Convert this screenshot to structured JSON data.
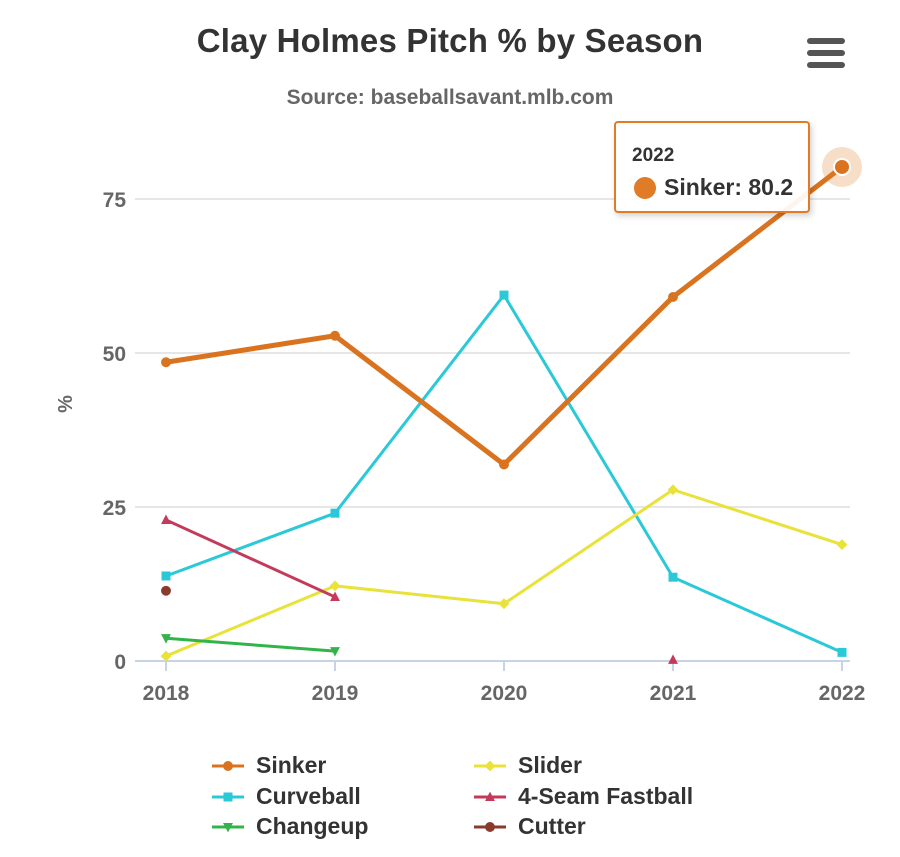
{
  "title": "Clay Holmes Pitch % by Season",
  "subtitle": "Source: baseballsavant.mlb.com",
  "menu": {
    "icon": "hamburger-menu-icon"
  },
  "tooltip": {
    "category": "2022",
    "series_name": "Sinker",
    "value_text": "80.2",
    "color": "#E07B28"
  },
  "chart_data": {
    "type": "line",
    "title": "Clay Holmes Pitch % by Season",
    "subtitle": "Source: baseballsavant.mlb.com",
    "ylabel": "%",
    "xlabel": "",
    "categories": [
      "2018",
      "2019",
      "2020",
      "2021",
      "2022"
    ],
    "ylim": [
      0,
      80
    ],
    "yticks": [
      0,
      25,
      50,
      75
    ],
    "grid": true,
    "legend_position": "bottom",
    "series": [
      {
        "name": "Sinker",
        "color": "#D9731F",
        "marker": "circle",
        "values": [
          48.5,
          52.8,
          31.9,
          59.1,
          80.2
        ]
      },
      {
        "name": "Slider",
        "color": "#E8E23A",
        "marker": "diamond",
        "values": [
          0.8,
          12.2,
          9.3,
          27.8,
          18.9
        ]
      },
      {
        "name": "Curveball",
        "color": "#2BC9D8",
        "marker": "square",
        "values": [
          13.8,
          24.0,
          59.4,
          13.6,
          1.4
        ]
      },
      {
        "name": "4-Seam Fastball",
        "color": "#C43A5A",
        "marker": "triangle",
        "values": [
          22.9,
          10.4,
          null,
          0.2,
          null
        ]
      },
      {
        "name": "Changeup",
        "color": "#33B44A",
        "marker": "triangle-down",
        "values": [
          3.7,
          1.6,
          null,
          null,
          null
        ]
      },
      {
        "name": "Cutter",
        "color": "#8B3A2E",
        "marker": "circle",
        "values": [
          11.4,
          null,
          null,
          null,
          null
        ]
      }
    ]
  }
}
